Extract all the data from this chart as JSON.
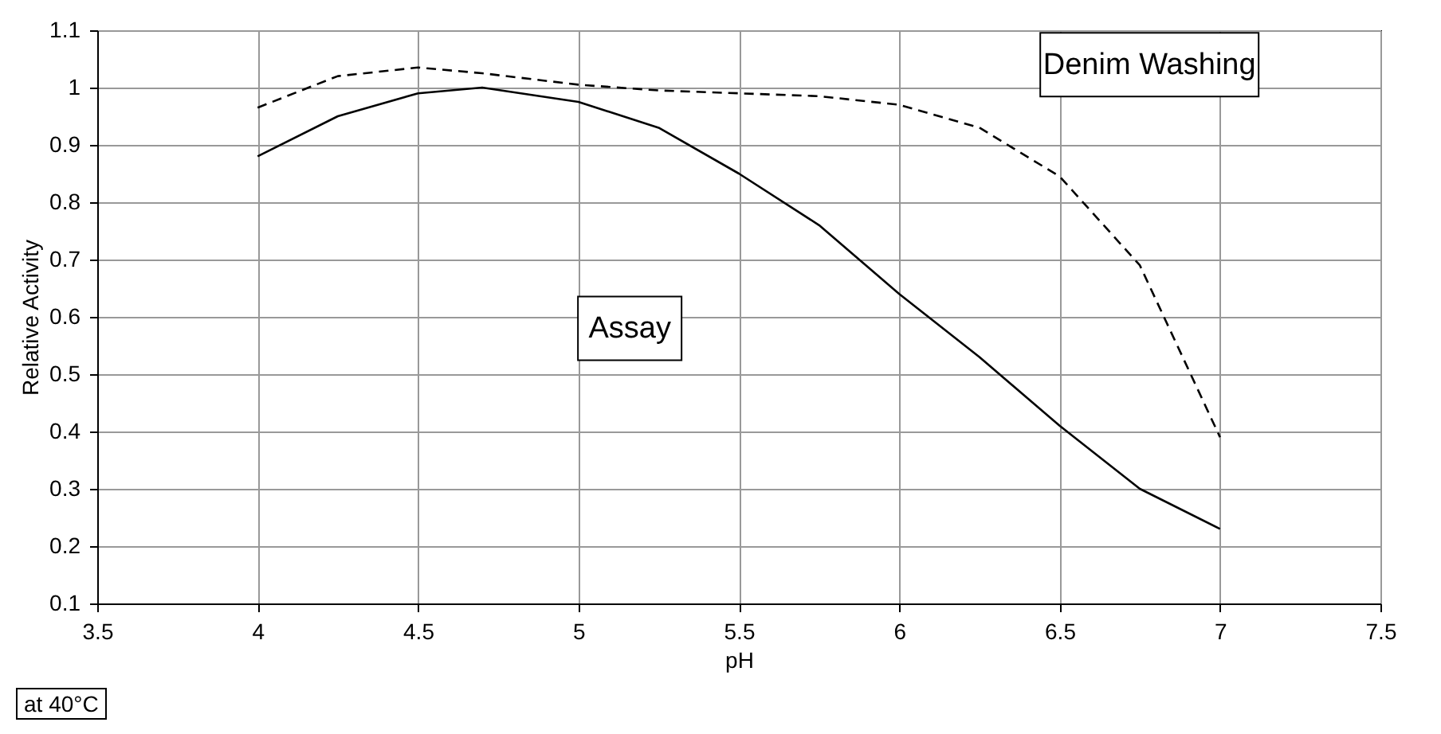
{
  "chart_data": {
    "type": "line",
    "xlabel": "pH",
    "ylabel": "Relative Activity",
    "xlim": [
      3.5,
      7.5
    ],
    "xticks": [
      3.5,
      4,
      4.5,
      5,
      5.5,
      6,
      6.5,
      7,
      7.5
    ],
    "ylim": [
      0.1,
      1.1
    ],
    "yticks": [
      0.1,
      0.2,
      0.3,
      0.4,
      0.5,
      0.6,
      0.7,
      0.8,
      0.9,
      1,
      1.1
    ],
    "grid": true,
    "legend": false,
    "annotations": [
      "at 40°C"
    ],
    "x": [
      4,
      4.25,
      4.5,
      4.7,
      5,
      5.25,
      5.5,
      5.75,
      6,
      6.25,
      6.5,
      6.75,
      7
    ],
    "series": [
      {
        "name": "Assay",
        "color": "#000000",
        "line_style": "solid",
        "values": [
          0.88,
          0.95,
          0.99,
          1.0,
          0.975,
          0.93,
          0.85,
          0.76,
          0.64,
          0.53,
          0.41,
          0.3,
          0.23
        ]
      },
      {
        "name": "Denim Washing",
        "color": "#000000",
        "line_style": "dashed",
        "values": [
          0.965,
          1.02,
          1.035,
          1.025,
          1.005,
          0.995,
          0.99,
          0.985,
          0.97,
          0.93,
          0.845,
          0.69,
          0.39
        ]
      }
    ]
  }
}
